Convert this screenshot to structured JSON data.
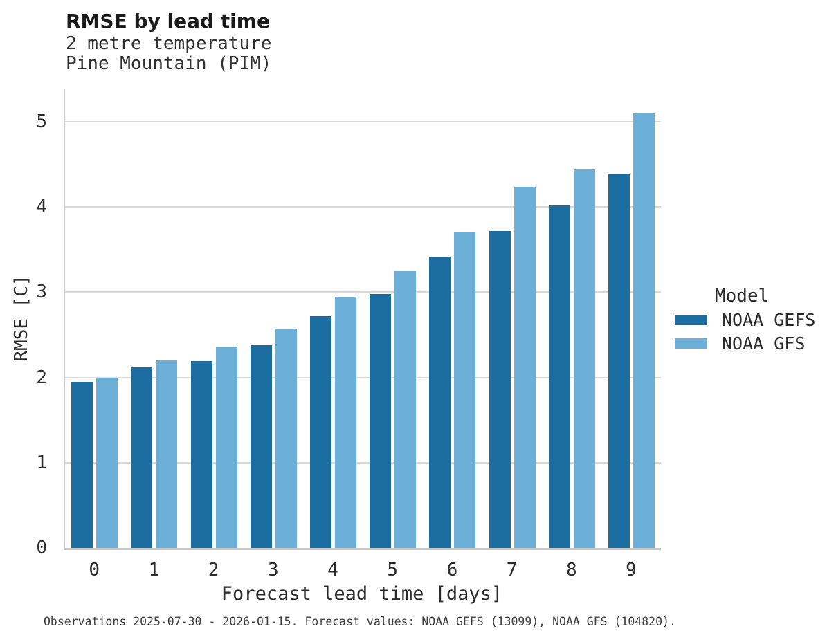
{
  "chart_data": {
    "type": "bar",
    "title": "RMSE by lead time",
    "subtitle": [
      "2 metre temperature",
      "Pine Mountain (PIM)"
    ],
    "xlabel": "Forecast lead time [days]",
    "ylabel": "RMSE [C]",
    "categories": [
      "0",
      "1",
      "2",
      "3",
      "4",
      "5",
      "6",
      "7",
      "8",
      "9"
    ],
    "series": [
      {
        "name": "NOAA GEFS",
        "color": "#1b6d9f",
        "values": [
          1.95,
          2.12,
          2.19,
          2.38,
          2.72,
          2.98,
          3.42,
          3.72,
          4.02,
          4.39
        ]
      },
      {
        "name": "NOAA GFS",
        "color": "#6cb0d9",
        "values": [
          2.0,
          2.2,
          2.36,
          2.57,
          2.95,
          3.25,
          3.7,
          4.24,
          4.44,
          5.1
        ]
      }
    ],
    "ylim": [
      0,
      5.39
    ],
    "yticks": [
      0,
      1,
      2,
      3,
      4,
      5
    ],
    "grid": true,
    "legend_title": "Model",
    "legend_position": "right"
  },
  "caption": "Observations 2025-07-30 - 2026-01-15. Forecast values: NOAA GEFS (13099), NOAA GFS (104820)."
}
